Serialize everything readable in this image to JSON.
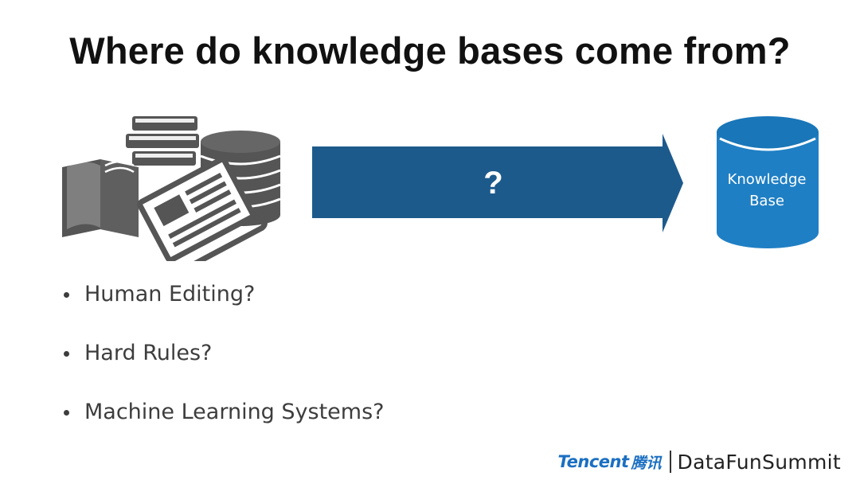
{
  "slide": {
    "title": "Where do knowledge bases come from?"
  },
  "diagram": {
    "arrow_label": "?",
    "target": {
      "line1": "Knowledge",
      "line2": "Base"
    }
  },
  "bullets": [
    "Human Editing?",
    "Hard Rules?",
    "Machine Learning Systems?"
  ],
  "footer": {
    "tencent": "Tencent",
    "tencent_cn": "腾讯",
    "summit": "DataFunSummit"
  },
  "colors": {
    "arrow": "#1d5a8c",
    "cylinder": "#1f7fc4",
    "cylinder_top": "#1976b8",
    "icons": "#555555",
    "brand": "#1b6fc2"
  },
  "icons": [
    "books-icon",
    "database-icon",
    "newspaper-icon"
  ]
}
